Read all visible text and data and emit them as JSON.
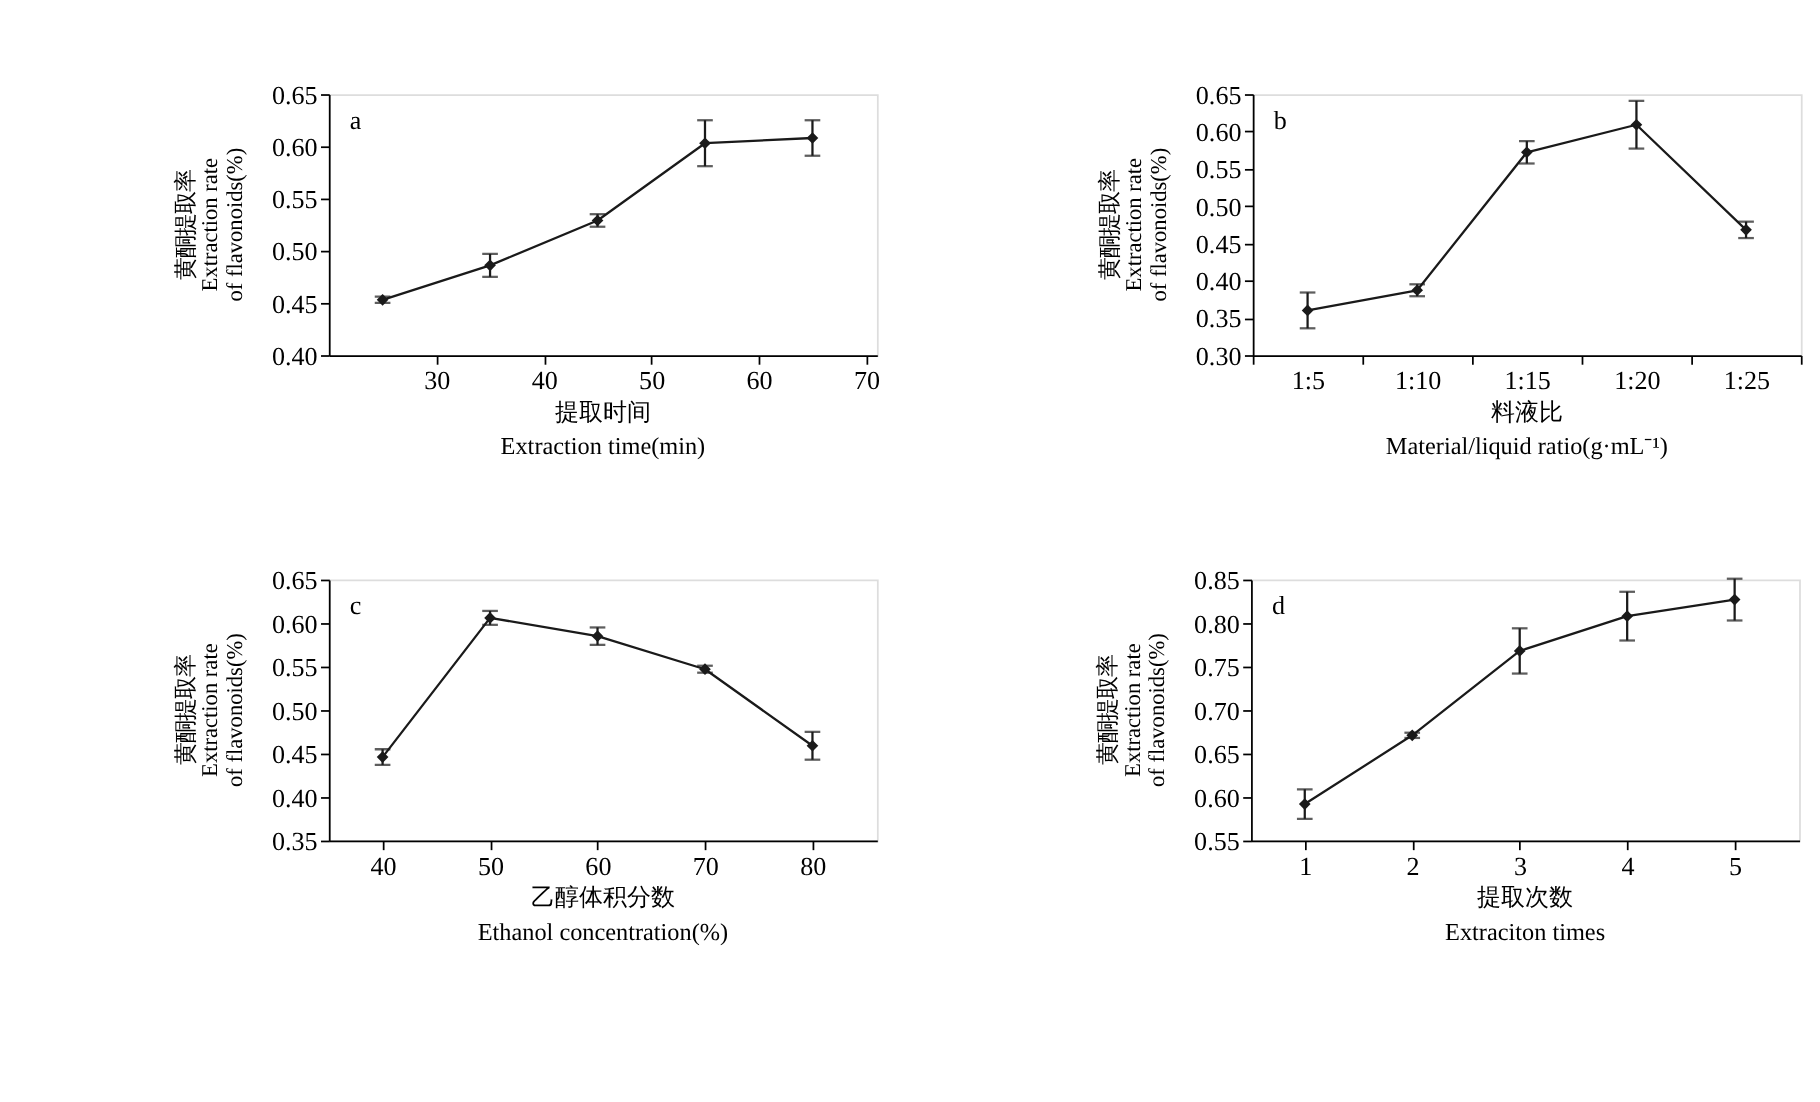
{
  "chart_data": [
    {
      "type": "line",
      "annotations": [
        "a"
      ],
      "xlabel": "提取时间\nExtraction time(min)",
      "ylabel": "黄酮提取率\nExtraction rate\nof flavonoids(%)",
      "x": [
        25,
        35,
        45,
        55,
        65
      ],
      "xlim": [
        20,
        71
      ],
      "xticks": [
        30,
        40,
        50,
        60,
        70
      ],
      "ylim": [
        0.4,
        0.65
      ],
      "yticks": [
        {
          "value": 0.4,
          "label": "0.40"
        },
        {
          "value": 0.45,
          "label": "0.45"
        },
        {
          "value": 0.5,
          "label": "0.50"
        },
        {
          "value": 0.55,
          "label": "0.55"
        },
        {
          "value": 0.6,
          "label": "0.60"
        },
        {
          "value": 0.65,
          "label": "0.65"
        }
      ],
      "series": [
        {
          "color": "#1a1a1a",
          "values": [
            0.453,
            0.486,
            0.529,
            0.603,
            0.608
          ],
          "errors": [
            0.003,
            0.011,
            0.006,
            0.022,
            0.017
          ]
        }
      ],
      "marker": "diamond",
      "grid": false
    },
    {
      "type": "line",
      "annotations": [
        "b"
      ],
      "xlabel": "料液比\nMaterial/liquid ratio(g·mL⁻¹)",
      "ylabel": "黄酮提取率\nExtraction rate\nof flavonoids(%)",
      "categories": [
        "1:5",
        "1:10",
        "1:15",
        "1:20",
        "1:25"
      ],
      "ylim": [
        0.3,
        0.65
      ],
      "yticks": [
        {
          "value": 0.3,
          "label": "0.30"
        },
        {
          "value": 0.35,
          "label": "0.35"
        },
        {
          "value": 0.4,
          "label": "0.40"
        },
        {
          "value": 0.45,
          "label": "0.45"
        },
        {
          "value": 0.5,
          "label": "0.50"
        },
        {
          "value": 0.55,
          "label": "0.55"
        },
        {
          "value": 0.6,
          "label": "0.60"
        },
        {
          "value": 0.65,
          "label": "0.65"
        }
      ],
      "series": [
        {
          "color": "#1a1a1a",
          "values": [
            0.36,
            0.387,
            0.572,
            0.609,
            0.468
          ],
          "errors": [
            0.024,
            0.008,
            0.015,
            0.032,
            0.011
          ]
        }
      ],
      "marker": "diamond",
      "grid": false
    },
    {
      "type": "line",
      "annotations": [
        "c"
      ],
      "xlabel": "乙醇体积分数\nEthanol concentration(%)",
      "ylabel": "黄酮提取率\nExtraction rate\nof flavonoids(%)",
      "x": [
        40,
        50,
        60,
        70,
        80
      ],
      "xlim": [
        35,
        86
      ],
      "xticks": [
        40,
        50,
        60,
        70,
        80
      ],
      "ylim": [
        0.35,
        0.65
      ],
      "yticks": [
        {
          "value": 0.35,
          "label": "0.35"
        },
        {
          "value": 0.4,
          "label": "0.40"
        },
        {
          "value": 0.45,
          "label": "0.45"
        },
        {
          "value": 0.5,
          "label": "0.50"
        },
        {
          "value": 0.55,
          "label": "0.55"
        },
        {
          "value": 0.6,
          "label": "0.60"
        },
        {
          "value": 0.65,
          "label": "0.65"
        }
      ],
      "series": [
        {
          "color": "#1a1a1a",
          "values": [
            0.446,
            0.606,
            0.585,
            0.547,
            0.459
          ],
          "errors": [
            0.009,
            0.008,
            0.01,
            0.004,
            0.016
          ]
        }
      ],
      "marker": "diamond",
      "grid": false
    },
    {
      "type": "line",
      "annotations": [
        "d"
      ],
      "xlabel": "提取次数\nExtraciton times",
      "ylabel": "黄酮提取率\nExtraction rate\nof flavonoids(%)",
      "x": [
        1,
        2,
        3,
        4,
        5
      ],
      "xlim": [
        0.5,
        5.6
      ],
      "xticks": [
        1,
        2,
        3,
        4,
        5
      ],
      "ylim": [
        0.55,
        0.85
      ],
      "yticks": [
        {
          "value": 0.55,
          "label": "0.55"
        },
        {
          "value": 0.6,
          "label": "0.60"
        },
        {
          "value": 0.65,
          "label": "0.65"
        },
        {
          "value": 0.7,
          "label": "0.70"
        },
        {
          "value": 0.75,
          "label": "0.75"
        },
        {
          "value": 0.8,
          "label": "0.80"
        },
        {
          "value": 0.85,
          "label": "0.85"
        }
      ],
      "series": [
        {
          "color": "#1a1a1a",
          "values": [
            0.592,
            0.671,
            0.768,
            0.808,
            0.827
          ],
          "errors": [
            0.017,
            0.003,
            0.026,
            0.028,
            0.024
          ]
        }
      ],
      "marker": "diamond",
      "grid": false
    }
  ]
}
